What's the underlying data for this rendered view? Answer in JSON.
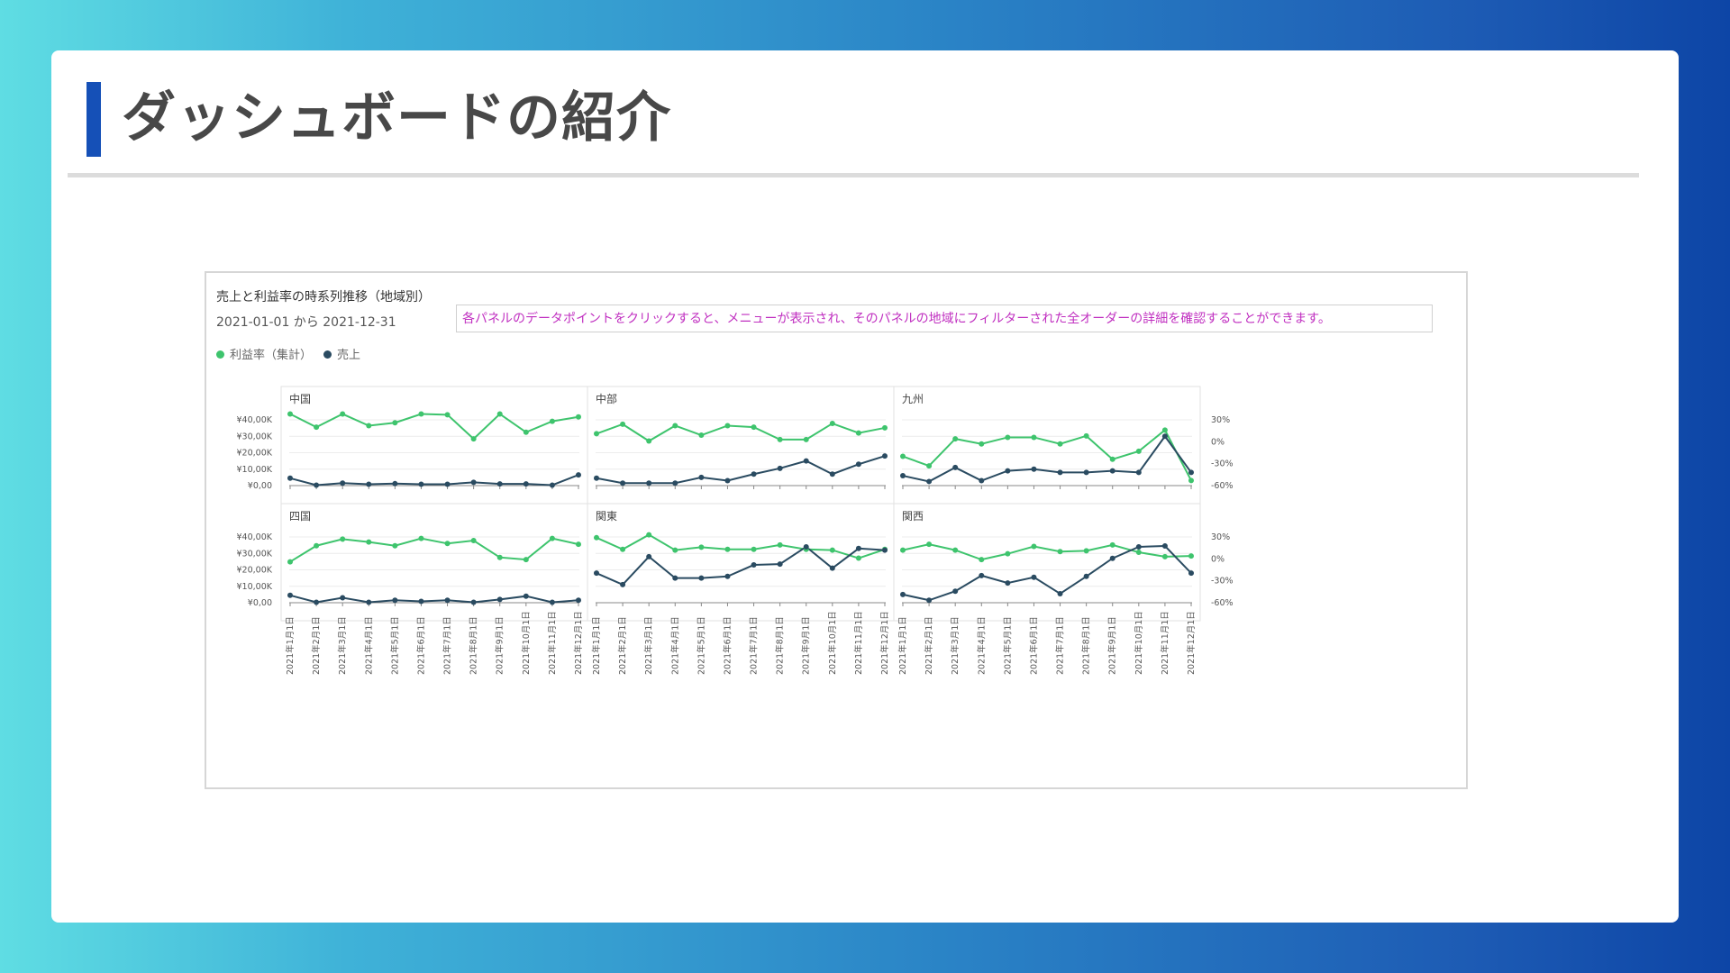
{
  "slide": {
    "title": "ダッシュボードの紹介",
    "accent_color": "#1550b7"
  },
  "dashboard": {
    "title": "売上と利益率の時系列推移（地域別）",
    "date_range": "2021-01-01 から 2021-12-31",
    "notice": "各パネルのデータポイントをクリックすると、メニューが表示され、そのパネルの地域にフィルターされた全オーダーの詳細を確認することができます。",
    "legend": [
      {
        "label": "利益率（集計）",
        "color": "#3ec46d"
      },
      {
        "label": "売上",
        "color": "#2a4b61"
      }
    ]
  },
  "chart_data": {
    "type": "line",
    "months": [
      "2021年1月1日",
      "2021年2月1日",
      "2021年3月1日",
      "2021年4月1日",
      "2021年5月1日",
      "2021年6月1日",
      "2021年7月1日",
      "2021年8月1日",
      "2021年9月1日",
      "2021年10月1日",
      "2021年11月1日",
      "2021年12月1日"
    ],
    "left_axis_ticks": [
      "¥0,00",
      "¥10,00K",
      "¥20,00K",
      "¥30,00K",
      "¥40,00K"
    ],
    "right_axis_ticks": [
      "30%",
      "0%",
      "-30%",
      "-60%"
    ],
    "sales_ylim": [
      0,
      40000
    ],
    "profit_ylim": [
      -60,
      30
    ],
    "series_colors": {
      "profit": "#3ec46d",
      "sales": "#2a4b61"
    },
    "facets": [
      {
        "region": "中国",
        "profit": [
          38,
          20,
          38,
          22,
          26,
          38,
          37,
          4,
          38,
          13,
          28,
          34
        ],
        "sales": [
          4500,
          300,
          1500,
          800,
          1200,
          800,
          800,
          2000,
          1000,
          1000,
          300,
          6500
        ]
      },
      {
        "region": "中部",
        "profit": [
          11,
          24,
          1,
          22,
          9,
          22,
          20,
          3,
          3,
          25,
          12,
          19
        ],
        "sales": [
          4500,
          1500,
          1500,
          1500,
          5000,
          3000,
          7000,
          10500,
          15000,
          7000,
          13000,
          18000
        ]
      },
      {
        "region": "九州",
        "profit": [
          -20,
          -33,
          4,
          -3,
          6,
          6,
          -3,
          8,
          -24,
          -13,
          16,
          -53
        ],
        "sales": [
          6000,
          2500,
          11000,
          3000,
          9000,
          10000,
          8000,
          8000,
          9000,
          8000,
          30000,
          8000
        ]
      },
      {
        "region": "四国",
        "profit": [
          -4,
          18,
          27,
          23,
          18,
          28,
          21,
          25,
          2,
          -1,
          28,
          20
        ],
        "sales": [
          4500,
          300,
          3000,
          300,
          1500,
          800,
          1500,
          300,
          2000,
          4000,
          300,
          1500
        ]
      },
      {
        "region": "関東",
        "profit": [
          29,
          13,
          33,
          12,
          16,
          13,
          13,
          19,
          13,
          12,
          1,
          13
        ],
        "sales": [
          18000,
          11000,
          28000,
          15000,
          15000,
          16000,
          23000,
          23500,
          34000,
          21000,
          33000,
          32000
        ]
      },
      {
        "region": "関西",
        "profit": [
          12,
          20,
          12,
          -1,
          7,
          17,
          10,
          11,
          19,
          9,
          3,
          4
        ],
        "sales": [
          5000,
          1500,
          7000,
          16500,
          12000,
          15500,
          5500,
          16000,
          27000,
          34000,
          34500,
          18000
        ]
      }
    ]
  }
}
